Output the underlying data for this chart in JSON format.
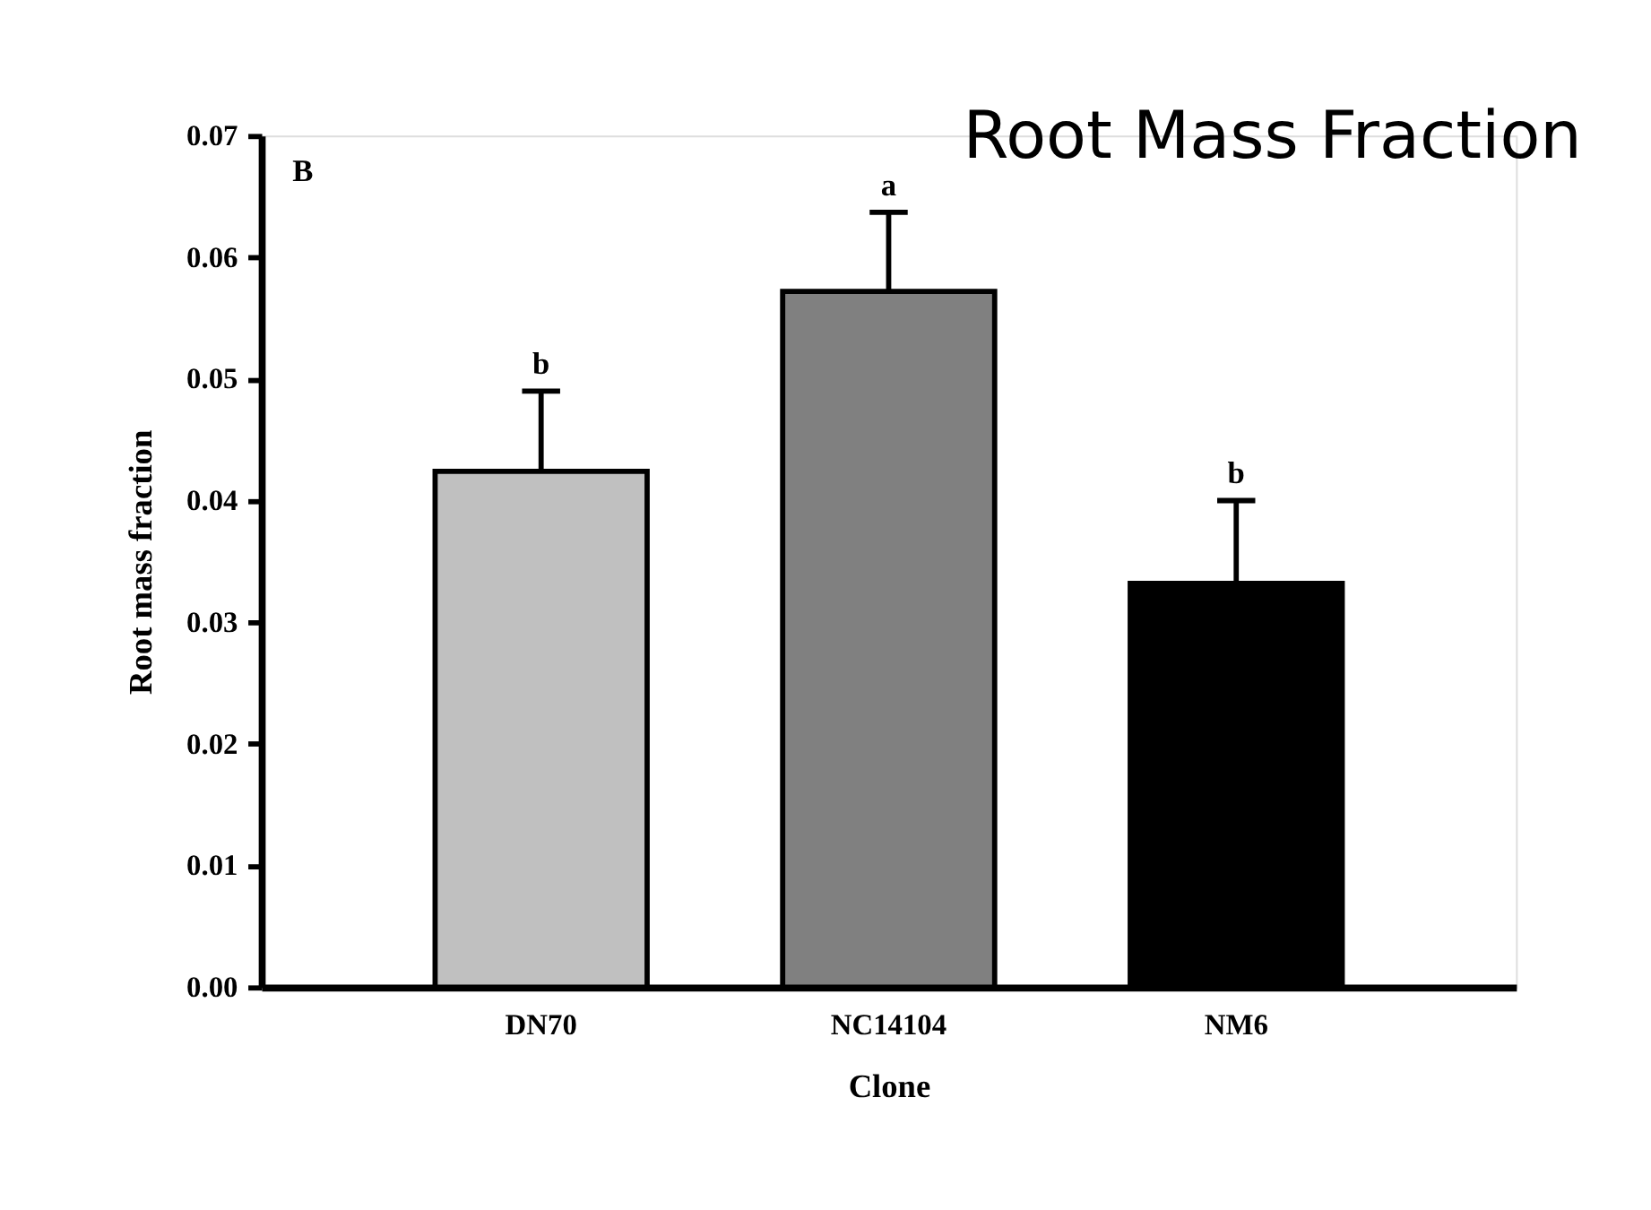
{
  "chart_data": {
    "type": "bar",
    "title": "Root Mass Fraction",
    "xlabel": "Clone",
    "ylabel": "Root mass fraction",
    "categories": [
      "DN70",
      "NC14104",
      "NM6"
    ],
    "values": [
      0.0424,
      0.0572,
      0.0332
    ],
    "colors": [
      "#c0c0c0",
      "#808080",
      "#000000"
    ],
    "errors": [
      [
        0.0424,
        0.049
      ],
      [
        0.0572,
        0.0637
      ],
      [
        0.0332,
        0.04
      ]
    ],
    "ylim": [
      0,
      0.07
    ],
    "yticks": [
      {
        "value": 0,
        "label": "0.00"
      },
      {
        "value": 0.01,
        "label": "0.01"
      },
      {
        "value": 0.02,
        "label": "0.02"
      },
      {
        "value": 0.03,
        "label": "0.03"
      },
      {
        "value": 0.04,
        "label": "0.04"
      },
      {
        "value": 0.05,
        "label": "0.05"
      },
      {
        "value": 0.06,
        "label": "0.06"
      },
      {
        "value": 0.07,
        "label": "0.07"
      }
    ],
    "annotations": [
      "B",
      {
        "text": "b",
        "x": "DN70",
        "y": 0.049
      },
      {
        "text": "a",
        "x": "NC14104",
        "y": 0.0637
      },
      {
        "text": "b",
        "x": "NM6",
        "y": 0.04
      }
    ],
    "grid": false
  }
}
